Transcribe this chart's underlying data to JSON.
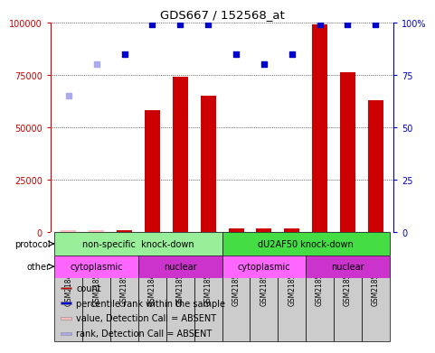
{
  "title": "GDS667 / 152568_at",
  "samples": [
    "GSM21848",
    "GSM21850",
    "GSM21852",
    "GSM21849",
    "GSM21851",
    "GSM21853",
    "GSM21854",
    "GSM21856",
    "GSM21858",
    "GSM21855",
    "GSM21857",
    "GSM21859"
  ],
  "bar_values": [
    1200,
    1200,
    1200,
    58000,
    74000,
    65000,
    2000,
    2000,
    2000,
    99000,
    76000,
    63000
  ],
  "bar_color": "#cc0000",
  "rank_values": [
    65,
    80,
    85,
    99,
    99,
    99,
    85,
    80,
    85,
    99,
    99,
    99
  ],
  "rank_color": "#0000cc",
  "absent_bar_color": "#ffbbbb",
  "absent_rank_color": "#aaaaee",
  "absent_indices": [
    0,
    1
  ],
  "ylim_left": [
    0,
    100000
  ],
  "ylim_right": [
    0,
    100
  ],
  "yticks_left": [
    0,
    25000,
    50000,
    75000,
    100000
  ],
  "yticks_right": [
    0,
    25,
    50,
    75,
    100
  ],
  "ytick_labels_left": [
    "0",
    "25000",
    "50000",
    "75000",
    "100000"
  ],
  "ytick_labels_right": [
    "0",
    "25",
    "50",
    "75",
    "100%"
  ],
  "protocol_groups": [
    {
      "label": "non-specific  knock-down",
      "start": 0,
      "end": 6,
      "color": "#99ee99"
    },
    {
      "label": "dU2AF50 knock-down",
      "start": 6,
      "end": 12,
      "color": "#44dd44"
    }
  ],
  "other_groups": [
    {
      "label": "cytoplasmic",
      "start": 0,
      "end": 3,
      "color": "#ff66ff"
    },
    {
      "label": "nuclear",
      "start": 3,
      "end": 6,
      "color": "#cc33cc"
    },
    {
      "label": "cytoplasmic",
      "start": 6,
      "end": 9,
      "color": "#ff66ff"
    },
    {
      "label": "nuclear",
      "start": 9,
      "end": 12,
      "color": "#cc33cc"
    }
  ],
  "legend_items": [
    {
      "label": "count",
      "color": "#cc0000"
    },
    {
      "label": "percentile rank within the sample",
      "color": "#0000cc"
    },
    {
      "label": "value, Detection Call = ABSENT",
      "color": "#ffbbbb"
    },
    {
      "label": "rank, Detection Call = ABSENT",
      "color": "#aaaaee"
    }
  ],
  "sample_bg_color": "#cccccc",
  "spine_color": "#000000",
  "left_axis_color": "#cc0000",
  "right_axis_color": "#0000cc",
  "background_color": "#ffffff"
}
